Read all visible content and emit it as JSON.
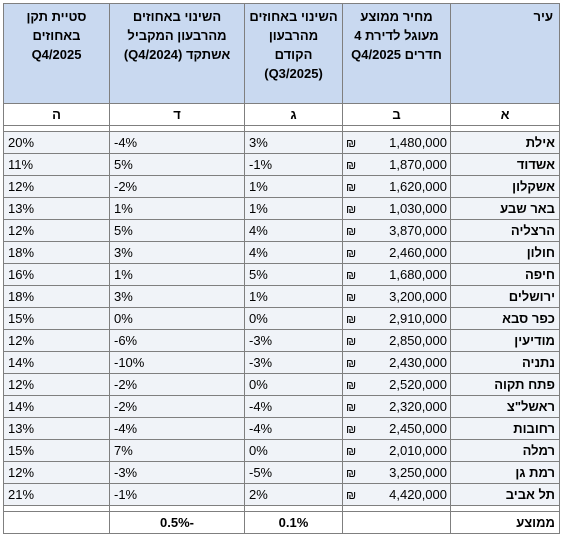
{
  "headers": {
    "a": "עיר",
    "b": "מחיר ממוצע מעוגל לדירת 4 חדרים Q4/2025",
    "c": "השינוי באחוזים מהרבעון הקודם (Q3/2025)",
    "d": "השינוי באחוזים מהרבעון המקביל אשתקד (Q4/2024)",
    "e": "סטיית תקן באחוזים Q4/2025"
  },
  "column_letters": {
    "a": "א",
    "b": "ב",
    "c": "ג",
    "d": "ד",
    "e": "ה"
  },
  "currency_symbol": "₪",
  "rows": [
    {
      "city": "אילת",
      "price": "1,480,000",
      "qoq": "3%",
      "yoy": "-4%",
      "stdev": "20%"
    },
    {
      "city": "אשדוד",
      "price": "1,870,000",
      "qoq": "-1%",
      "yoy": "5%",
      "stdev": "11%"
    },
    {
      "city": "אשקלון",
      "price": "1,620,000",
      "qoq": "1%",
      "yoy": "-2%",
      "stdev": "12%"
    },
    {
      "city": "באר שבע",
      "price": "1,030,000",
      "qoq": "1%",
      "yoy": "1%",
      "stdev": "13%"
    },
    {
      "city": "הרצליה",
      "price": "3,870,000",
      "qoq": "4%",
      "yoy": "5%",
      "stdev": "12%"
    },
    {
      "city": "חולון",
      "price": "2,460,000",
      "qoq": "4%",
      "yoy": "3%",
      "stdev": "18%"
    },
    {
      "city": "חיפה",
      "price": "1,680,000",
      "qoq": "5%",
      "yoy": "1%",
      "stdev": "16%"
    },
    {
      "city": "ירושלים",
      "price": "3,200,000",
      "qoq": "1%",
      "yoy": "3%",
      "stdev": "18%"
    },
    {
      "city": "כפר סבא",
      "price": "2,910,000",
      "qoq": "0%",
      "yoy": "0%",
      "stdev": "15%"
    },
    {
      "city": "מודיעין",
      "price": "2,850,000",
      "qoq": "-3%",
      "yoy": "-6%",
      "stdev": "12%"
    },
    {
      "city": "נתניה",
      "price": "2,430,000",
      "qoq": "-3%",
      "yoy": "-10%",
      "stdev": "14%"
    },
    {
      "city": "פתח תקוה",
      "price": "2,520,000",
      "qoq": "0%",
      "yoy": "-2%",
      "stdev": "12%"
    },
    {
      "city": "ראשל\"צ",
      "price": "2,320,000",
      "qoq": "-4%",
      "yoy": "-2%",
      "stdev": "14%"
    },
    {
      "city": "רחובות",
      "price": "2,450,000",
      "qoq": "-4%",
      "yoy": "-4%",
      "stdev": "13%"
    },
    {
      "city": "רמלה",
      "price": "2,010,000",
      "qoq": "0%",
      "yoy": "7%",
      "stdev": "15%"
    },
    {
      "city": "רמת גן",
      "price": "3,250,000",
      "qoq": "-5%",
      "yoy": "-3%",
      "stdev": "12%"
    },
    {
      "city": "תל אביב",
      "price": "4,420,000",
      "qoq": "2%",
      "yoy": "-1%",
      "stdev": "21%"
    }
  ],
  "average": {
    "label": "ממוצע",
    "qoq": "0.1%",
    "yoy": "-0.5%"
  },
  "colors": {
    "header_bg": "#c9d9f0",
    "row_bg": "#f0f3f8",
    "border": "#7f7f7f"
  }
}
